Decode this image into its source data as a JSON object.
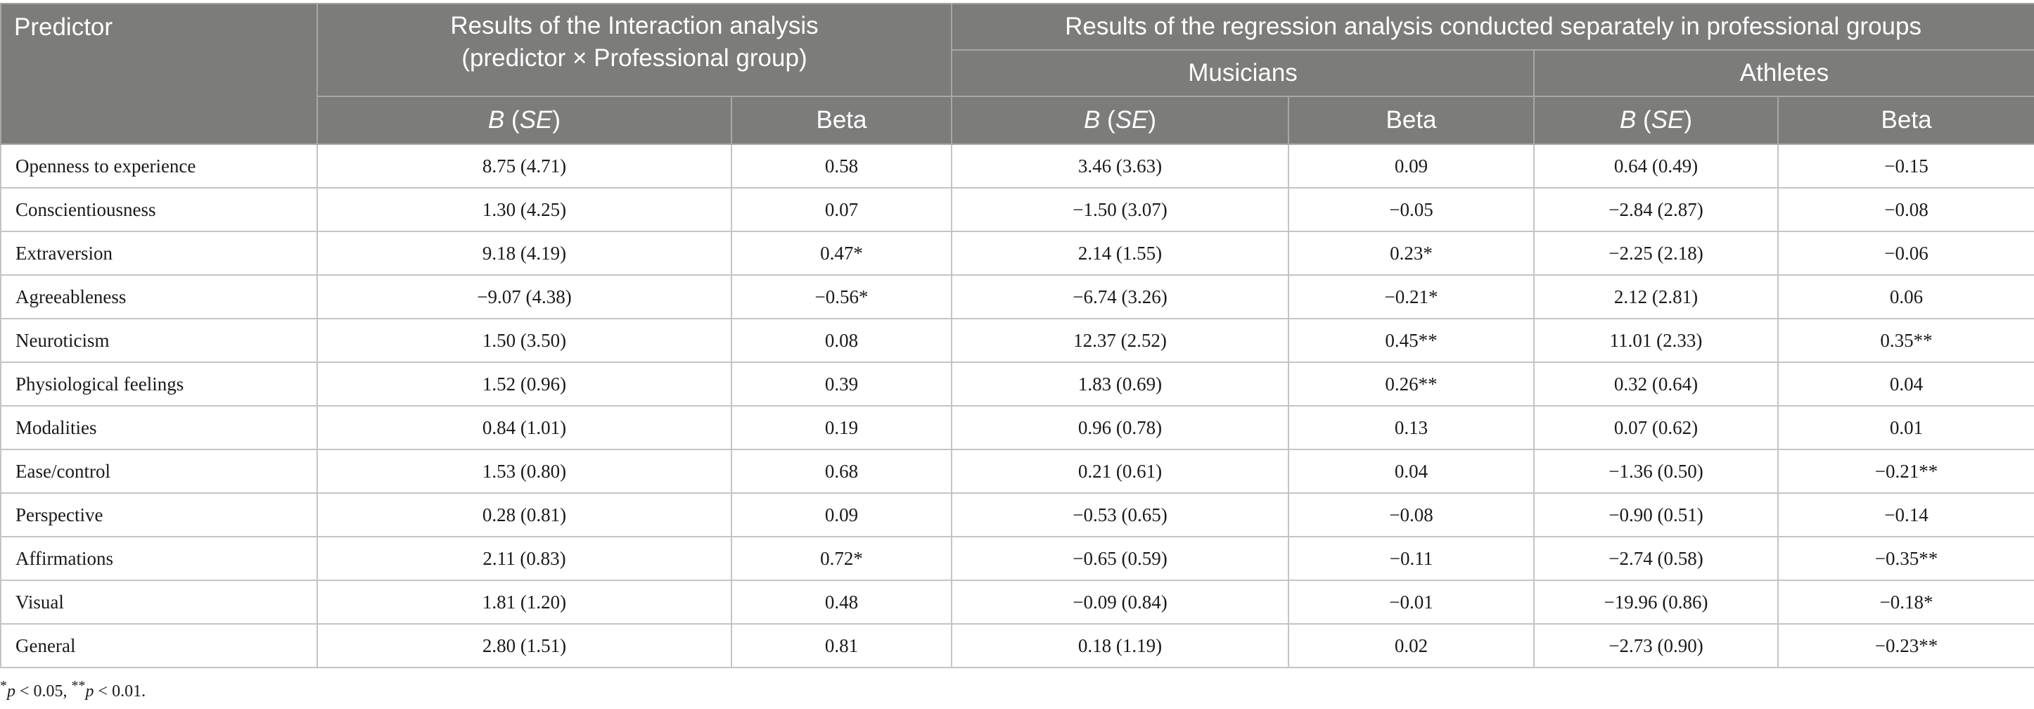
{
  "headers": {
    "predictor": "Predictor",
    "interaction_line1": "Results of the Interaction analysis",
    "interaction_line2": "(predictor × Professional group)",
    "regression": "Results of the regression analysis conducted separately in professional groups",
    "musicians": "Musicians",
    "athletes": "Athletes",
    "b_italic": "B",
    "se_open": " (",
    "se_italic": "SE",
    "se_close": ")",
    "beta": "Beta"
  },
  "rows": [
    {
      "predictor": "Openness to experience",
      "int_b": "8.75 (4.71)",
      "int_beta": "0.58",
      "mus_b": "3.46 (3.63)",
      "mus_beta": "0.09",
      "ath_b": "0.64 (0.49)",
      "ath_beta": "−0.15"
    },
    {
      "predictor": "Conscientiousness",
      "int_b": "1.30 (4.25)",
      "int_beta": "0.07",
      "mus_b": "−1.50 (3.07)",
      "mus_beta": "−0.05",
      "ath_b": "−2.84 (2.87)",
      "ath_beta": "−0.08"
    },
    {
      "predictor": "Extraversion",
      "int_b": "9.18 (4.19)",
      "int_beta": "0.47*",
      "mus_b": "2.14 (1.55)",
      "mus_beta": "0.23*",
      "ath_b": "−2.25 (2.18)",
      "ath_beta": "−0.06"
    },
    {
      "predictor": "Agreeableness",
      "int_b": "−9.07 (4.38)",
      "int_beta": "−0.56*",
      "mus_b": "−6.74 (3.26)",
      "mus_beta": "−0.21*",
      "ath_b": "2.12 (2.81)",
      "ath_beta": "0.06"
    },
    {
      "predictor": "Neuroticism",
      "int_b": "1.50 (3.50)",
      "int_beta": "0.08",
      "mus_b": "12.37 (2.52)",
      "mus_beta": "0.45**",
      "ath_b": "11.01 (2.33)",
      "ath_beta": "0.35**"
    },
    {
      "predictor": "Physiological feelings",
      "int_b": "1.52 (0.96)",
      "int_beta": "0.39",
      "mus_b": "1.83 (0.69)",
      "mus_beta": "0.26**",
      "ath_b": "0.32 (0.64)",
      "ath_beta": "0.04"
    },
    {
      "predictor": "Modalities",
      "int_b": "0.84 (1.01)",
      "int_beta": "0.19",
      "mus_b": "0.96 (0.78)",
      "mus_beta": "0.13",
      "ath_b": "0.07 (0.62)",
      "ath_beta": "0.01"
    },
    {
      "predictor": "Ease/control",
      "int_b": "1.53 (0.80)",
      "int_beta": "0.68",
      "mus_b": "0.21 (0.61)",
      "mus_beta": "0.04",
      "ath_b": "−1.36 (0.50)",
      "ath_beta": "−0.21**"
    },
    {
      "predictor": "Perspective",
      "int_b": "0.28 (0.81)",
      "int_beta": "0.09",
      "mus_b": "−0.53 (0.65)",
      "mus_beta": "−0.08",
      "ath_b": "−0.90 (0.51)",
      "ath_beta": "−0.14"
    },
    {
      "predictor": "Affirmations",
      "int_b": "2.11 (0.83)",
      "int_beta": "0.72*",
      "mus_b": "−0.65 (0.59)",
      "mus_beta": "−0.11",
      "ath_b": "−2.74 (0.58)",
      "ath_beta": "−0.35**"
    },
    {
      "predictor": "Visual",
      "int_b": "1.81 (1.20)",
      "int_beta": "0.48",
      "mus_b": "−0.09 (0.84)",
      "mus_beta": "−0.01",
      "ath_b": "−19.96 (0.86)",
      "ath_beta": "−0.18*"
    },
    {
      "predictor": "General",
      "int_b": "2.80 (1.51)",
      "int_beta": "0.81",
      "mus_b": "0.18 (1.19)",
      "mus_beta": "0.02",
      "ath_b": "−2.73 (0.90)",
      "ath_beta": "−0.23**"
    }
  ],
  "footnote": {
    "star1": "*",
    "p1": "p",
    "t1": " < 0.05, ",
    "star2": "**",
    "p2": "p",
    "t2": " < 0.01."
  }
}
